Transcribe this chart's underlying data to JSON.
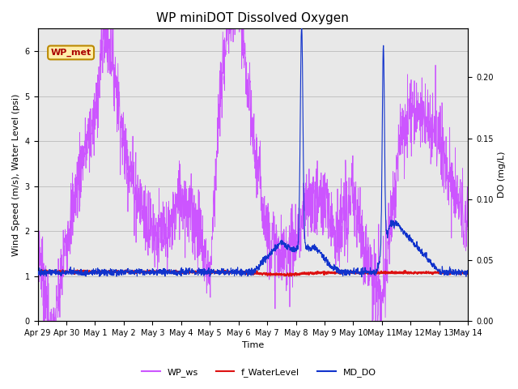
{
  "title": "WP miniDOT Dissolved Oxygen",
  "ylabel_left": "Wind Speed (m/s), Water Level (psi)",
  "ylabel_right": "DO (mg/L)",
  "xlabel": "Time",
  "ylim_left": [
    0.0,
    6.5
  ],
  "ylim_right": [
    0.0,
    0.24
  ],
  "xtick_labels": [
    "Apr 29",
    "Apr 30",
    "May 1",
    "May 2",
    "May 3",
    "May 4",
    "May 5",
    "May 6",
    "May 7",
    "May 8",
    "May 9",
    "May 10",
    "May 11",
    "May 12",
    "May 13",
    "May 14"
  ],
  "color_ws": "#CC55FF",
  "color_water": "#DD1111",
  "color_do": "#1133CC",
  "linewidth_ws": 0.6,
  "linewidth_water": 1.2,
  "linewidth_do": 0.8,
  "legend_label_ws": "WP_ws",
  "legend_label_water": "f_WaterLevel",
  "legend_label_do": "MD_DO",
  "annotation_text": "WP_met",
  "annotation_color": "#AA0000",
  "annotation_bg": "#FFEEAA",
  "annotation_border": "#BB8800",
  "grid_color": "#BBBBBB",
  "bg_color": "#E8E8E8",
  "title_fontsize": 11,
  "axis_fontsize": 8,
  "tick_fontsize": 7,
  "legend_fontsize": 8
}
